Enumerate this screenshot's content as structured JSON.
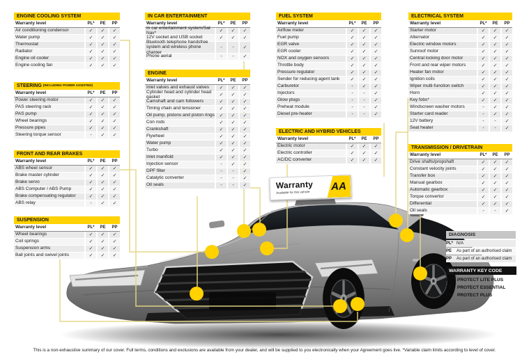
{
  "colors": {
    "aa_yellow": "#FFD200",
    "connector": "#E6D583",
    "diagnosis_header": "#C6C6C6",
    "keycode_header": "#111111"
  },
  "columns": [
    "PL*",
    "PE",
    "PP"
  ],
  "warranty_level_label": "Warranty level",
  "tables": [
    {
      "id": "cooling",
      "title": "ENGINE COOLING SYSTEM",
      "title_small": "",
      "rows": [
        {
          "label": "Air conditioning condensor",
          "values": [
            "✓",
            "✓",
            "✓"
          ]
        },
        {
          "label": "Water pump",
          "values": [
            "✓",
            "✓",
            "✓"
          ]
        },
        {
          "label": "Thermostat",
          "values": [
            "✓",
            "✓",
            "✓"
          ]
        },
        {
          "label": "Radiator",
          "values": [
            "✓",
            "✓",
            "✓"
          ]
        },
        {
          "label": "Engine oil cooler",
          "values": [
            "✓",
            "✓",
            "✓"
          ]
        },
        {
          "label": "Engine cooling fan",
          "values": [
            "✓",
            "✓",
            "✓"
          ]
        }
      ]
    },
    {
      "id": "steering",
      "title": "STEERING",
      "title_small": "(INCLUDING POWER ASSISTED)",
      "rows": [
        {
          "label": "Power steering motor",
          "values": [
            "✓",
            "✓",
            "✓"
          ]
        },
        {
          "label": "PAS steering rack",
          "values": [
            "✓",
            "✓",
            "✓"
          ]
        },
        {
          "label": "PAS pump",
          "values": [
            "✓",
            "✓",
            "✓"
          ]
        },
        {
          "label": "Wheel bearings",
          "values": [
            "✓",
            "✓",
            "✓"
          ]
        },
        {
          "label": "Pressure pipes",
          "values": [
            "✓",
            "✓",
            "✓"
          ]
        },
        {
          "label": "Steering torque sensor",
          "values": [
            "-",
            "✓",
            "✓"
          ]
        }
      ]
    },
    {
      "id": "brakes",
      "title": "FRONT AND REAR BRAKES",
      "title_small": "",
      "rows": [
        {
          "label": "ABS wheel sensor",
          "values": [
            "✓",
            "✓",
            "✓"
          ]
        },
        {
          "label": "Brake master cylinder",
          "values": [
            "✓",
            "✓",
            "✓"
          ]
        },
        {
          "label": "Brake servo",
          "values": [
            "✓",
            "✓",
            "✓"
          ]
        },
        {
          "label": "ABS Computer / ABS Pump",
          "values": [
            "✓",
            "✓",
            "✓"
          ]
        },
        {
          "label": "Brake compensating regulator",
          "values": [
            "✓",
            "✓",
            "✓"
          ]
        },
        {
          "label": "ABS relay",
          "values": [
            "-",
            "✓",
            "✓"
          ]
        }
      ]
    },
    {
      "id": "suspension",
      "title": "SUSPENSION",
      "title_small": "",
      "rows": [
        {
          "label": "Wheel bearings",
          "values": [
            "✓",
            "✓",
            "✓"
          ]
        },
        {
          "label": "Coil springs",
          "values": [
            "✓",
            "✓",
            "✓"
          ]
        },
        {
          "label": "Suspension arms",
          "values": [
            "✓",
            "✓",
            "✓"
          ]
        },
        {
          "label": "Ball joints and swivel joints",
          "values": [
            "✓",
            "✓",
            "✓"
          ]
        }
      ]
    },
    {
      "id": "entertainment",
      "title": "IN CAR ENTERTAINMENT",
      "title_small": "",
      "rows": [
        {
          "label": "In car entertainment system/Sat Nav*",
          "values": [
            "✓",
            "✓",
            "✓"
          ]
        },
        {
          "label": "12V socket and USB socket",
          "values": [
            "✓",
            "✓",
            "✓"
          ]
        },
        {
          "label": "Bluetooth telephone handsfree system and wireless phone charger",
          "values": [
            "-",
            "-",
            "✓"
          ],
          "tall": true
        },
        {
          "label": "Phone aerial",
          "values": [
            "-",
            "-",
            "✓"
          ]
        }
      ]
    },
    {
      "id": "engine",
      "title": "ENGINE",
      "title_small": "",
      "rows": [
        {
          "label": "Inlet valves and exhaust valves",
          "values": [
            "✓",
            "✓",
            "✓"
          ]
        },
        {
          "label": "Cylinder head and cylinder head gasket",
          "values": [
            "✓",
            "✓",
            "✓"
          ]
        },
        {
          "label": "Camshaft and cam followers",
          "values": [
            "✓",
            "✓",
            "✓"
          ]
        },
        {
          "label": "Timing chain and tensioner",
          "values": [
            "✓",
            "✓",
            "✓"
          ]
        },
        {
          "label": "Oil pump, pistons and piston rings",
          "values": [
            "✓",
            "✓",
            "✓"
          ]
        },
        {
          "label": "Con rods",
          "values": [
            "✓",
            "✓",
            "✓"
          ]
        },
        {
          "label": "Crankshaft",
          "values": [
            "✓",
            "✓",
            "✓"
          ]
        },
        {
          "label": "Flywheel",
          "values": [
            "✓",
            "✓",
            "✓"
          ]
        },
        {
          "label": "Water pump",
          "values": [
            "✓",
            "✓",
            "✓"
          ]
        },
        {
          "label": "Turbo",
          "values": [
            "✓",
            "✓",
            "✓"
          ]
        },
        {
          "label": "Inlet manifold",
          "values": [
            "✓",
            "✓",
            "✓"
          ]
        },
        {
          "label": "Injection sensor",
          "values": [
            "-",
            "✓",
            "✓"
          ]
        },
        {
          "label": "DPF filter",
          "values": [
            "-",
            "-",
            "✓"
          ]
        },
        {
          "label": "Catalytic converter",
          "values": [
            "-",
            "-",
            "✓"
          ]
        },
        {
          "label": "Oil seals",
          "values": [
            "-",
            "-",
            "✓"
          ]
        }
      ]
    },
    {
      "id": "fuel",
      "title": "FUEL SYSTEM",
      "title_small": "",
      "rows": [
        {
          "label": "Airflow meter",
          "values": [
            "✓",
            "✓",
            "✓"
          ]
        },
        {
          "label": "Fuel pump",
          "values": [
            "✓",
            "✓",
            "✓"
          ]
        },
        {
          "label": "EGR valve",
          "values": [
            "✓",
            "✓",
            "✓"
          ]
        },
        {
          "label": "EGR cooler",
          "values": [
            "✓",
            "✓",
            "✓"
          ]
        },
        {
          "label": "NOX and oxygen sensors",
          "values": [
            "✓",
            "✓",
            "✓"
          ]
        },
        {
          "label": "Throttle body",
          "values": [
            "✓",
            "✓",
            "✓"
          ]
        },
        {
          "label": "Pressure regulator",
          "values": [
            "✓",
            "✓",
            "✓"
          ]
        },
        {
          "label": "Sender for reducing agent tank",
          "values": [
            "✓",
            "✓",
            "✓"
          ]
        },
        {
          "label": "Carburetor",
          "values": [
            "-",
            "✓",
            "✓"
          ]
        },
        {
          "label": "Injectors",
          "values": [
            "-",
            "-",
            "✓"
          ]
        },
        {
          "label": "Glow plugs",
          "values": [
            "-",
            "-",
            "✓"
          ]
        },
        {
          "label": "Preheat module",
          "values": [
            "-",
            "-",
            "✓"
          ]
        },
        {
          "label": "Diesel pre-heater",
          "values": [
            "-",
            "-",
            "✓"
          ]
        }
      ]
    },
    {
      "id": "electric",
      "title": "ELECTRIC AND HYBRID VEHICLES",
      "title_small": "",
      "rows": [
        {
          "label": "Electric motor",
          "values": [
            "✓",
            "✓",
            "✓"
          ]
        },
        {
          "label": "Electric controller",
          "values": [
            "✓",
            "✓",
            "✓"
          ]
        },
        {
          "label": "AC/DC converter",
          "values": [
            "✓",
            "✓",
            "✓"
          ]
        }
      ]
    },
    {
      "id": "electrical",
      "title": "ELECTRICAL SYSTEM",
      "title_small": "",
      "rows": [
        {
          "label": "Starter motor",
          "values": [
            "✓",
            "✓",
            "✓"
          ]
        },
        {
          "label": "Alternator",
          "values": [
            "✓",
            "✓",
            "✓"
          ]
        },
        {
          "label": "Electric window motors",
          "values": [
            "✓",
            "✓",
            "✓"
          ]
        },
        {
          "label": "Sunroof motor",
          "values": [
            "✓",
            "✓",
            "✓"
          ]
        },
        {
          "label": "Central locking door motor",
          "values": [
            "✓",
            "✓",
            "✓"
          ]
        },
        {
          "label": "Front and rear wiper motors",
          "values": [
            "✓",
            "✓",
            "✓"
          ]
        },
        {
          "label": "Heater fan motor",
          "values": [
            "✓",
            "✓",
            "✓"
          ]
        },
        {
          "label": "Ignition coils",
          "values": [
            "✓",
            "✓",
            "✓"
          ]
        },
        {
          "label": "Wiper multi-function switch",
          "values": [
            "✓",
            "✓",
            "✓"
          ]
        },
        {
          "label": "Horn",
          "values": [
            "✓",
            "✓",
            "✓"
          ]
        },
        {
          "label": "Key fobs*",
          "values": [
            "✓",
            "✓",
            "✓"
          ]
        },
        {
          "label": "Windscreen washer motors",
          "values": [
            "-",
            "✓",
            "✓"
          ]
        },
        {
          "label": "Starter card reader",
          "values": [
            "-",
            "✓",
            "✓"
          ]
        },
        {
          "label": "12V battery",
          "values": [
            "-",
            "-",
            "✓"
          ]
        },
        {
          "label": "Seat heater",
          "values": [
            "-",
            "-",
            "✓"
          ]
        }
      ]
    },
    {
      "id": "transmission",
      "title": "TRANSMISSION / DRIVETRAIN",
      "title_small": "",
      "rows": [
        {
          "label": "Drive shafts/propshaft",
          "values": [
            "✓",
            "✓",
            "✓"
          ]
        },
        {
          "label": "Constant velocity joints",
          "values": [
            "✓",
            "✓",
            "✓"
          ]
        },
        {
          "label": "Transfer box",
          "values": [
            "✓",
            "✓",
            "✓"
          ]
        },
        {
          "label": "Manual gearbox",
          "values": [
            "✓",
            "✓",
            "✓"
          ]
        },
        {
          "label": "Automatic gearbox",
          "values": [
            "✓",
            "✓",
            "✓"
          ]
        },
        {
          "label": "Torque convertor",
          "values": [
            "✓",
            "✓",
            "✓"
          ]
        },
        {
          "label": "Differential",
          "values": [
            "✓",
            "✓",
            "✓"
          ]
        },
        {
          "label": "Oil seals",
          "values": [
            "-",
            "-",
            "✓"
          ]
        }
      ]
    }
  ],
  "diagnosis": {
    "title": "DIAGNOSIS",
    "rows": [
      {
        "code": "PL*",
        "text": "N/A"
      },
      {
        "code": "PE",
        "text": "As part of an authorised claim"
      },
      {
        "code": "PP",
        "text": "As part of an authorised claim"
      }
    ]
  },
  "key_code": {
    "title": "WARRANTY KEY CODE",
    "rows": [
      {
        "code": "PL*",
        "text": "PROTECT LITE PLUS"
      },
      {
        "code": "PE",
        "text": "PROTECT ESSENTIAL"
      },
      {
        "code": "PP",
        "text": "PROTECT PLUS"
      }
    ]
  },
  "roof_sign": {
    "title": "Warranty",
    "subtitle": "Available for this vehicle",
    "logo": "AA"
  },
  "footer": "This is a non-exhaustive summary of our cover. Full terms, conditions and exclusions are available from your dealer, and will be supplied to you electronically when your Agreement goes live. *Variable claim limits according to level of cover."
}
